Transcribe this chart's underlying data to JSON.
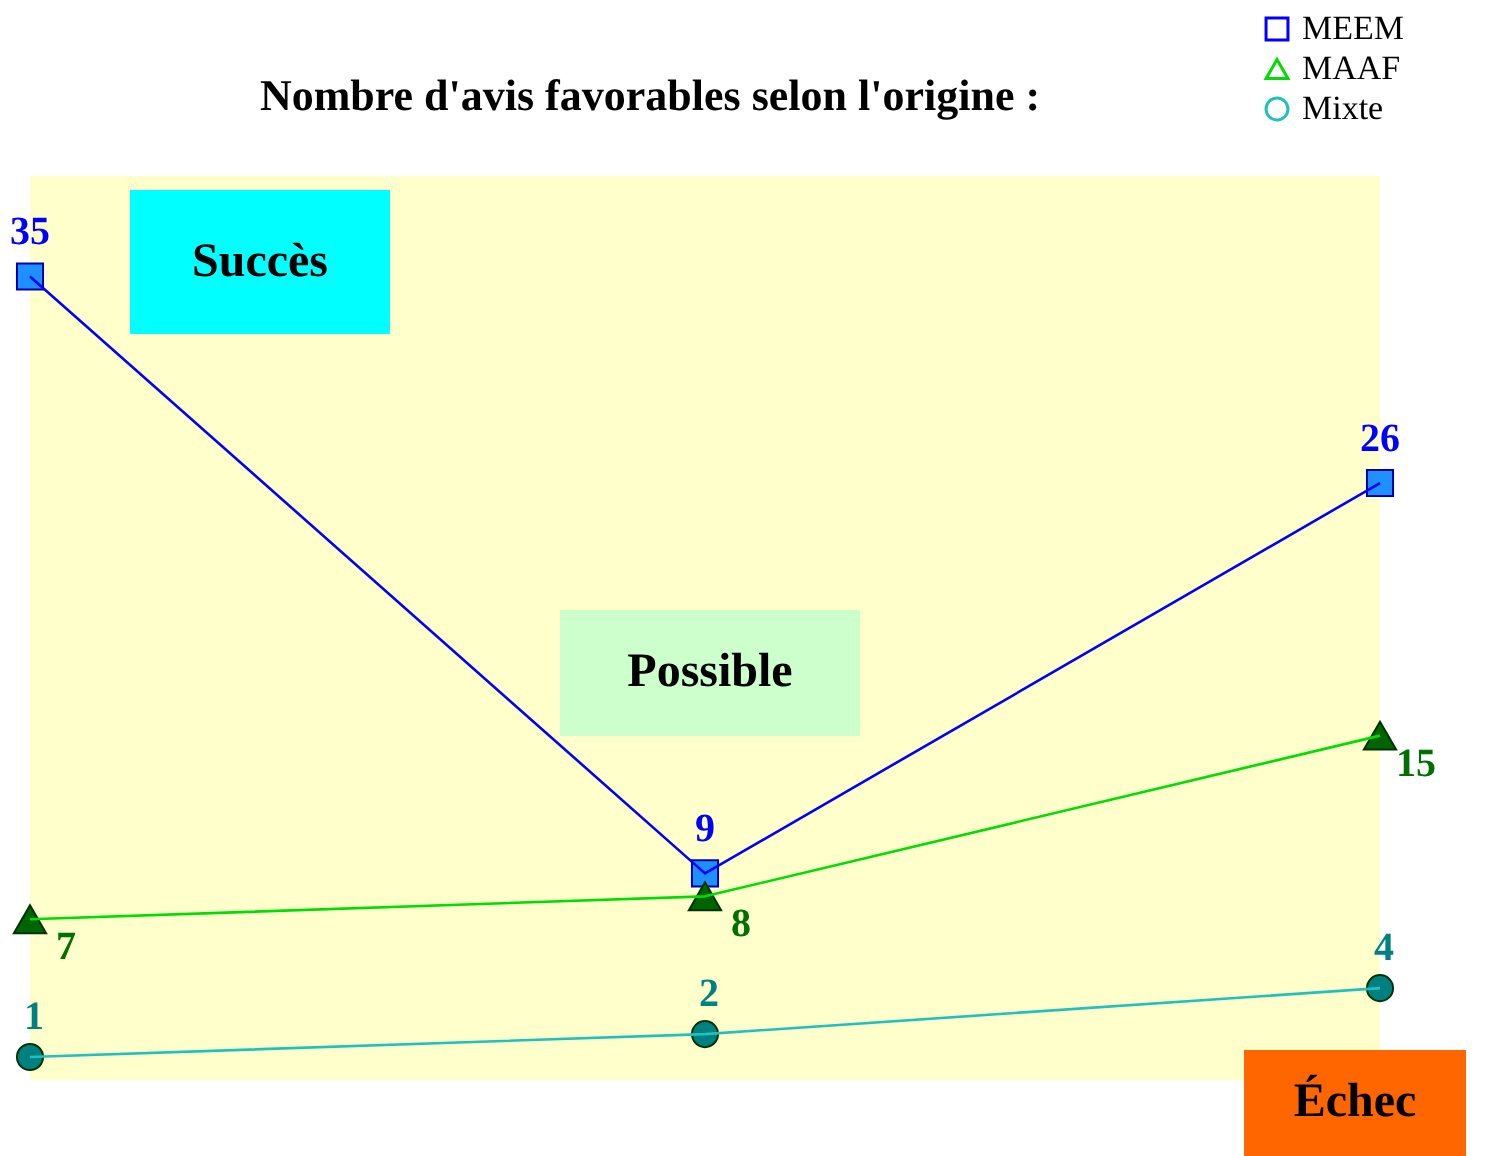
{
  "chart_data": {
    "type": "line",
    "title": "Nombre d'avis favorables selon l'origine :",
    "categories": [
      null,
      null,
      null
    ],
    "series": [
      {
        "name": "MEEM",
        "color": "#0000ff",
        "marker": "square",
        "values": [
          35,
          9,
          26
        ]
      },
      {
        "name": "MAAF",
        "color": "#00dd00",
        "marker": "triangle",
        "values": [
          7,
          8,
          15
        ]
      },
      {
        "name": "Mixte",
        "color": "#20c0c0",
        "marker": "circle",
        "values": [
          1,
          2,
          4
        ]
      }
    ],
    "data_labels": true,
    "legend": "top right",
    "tick_labels": false,
    "annotations": [
      "Succès",
      "Possible",
      "Échec"
    ]
  }
}
